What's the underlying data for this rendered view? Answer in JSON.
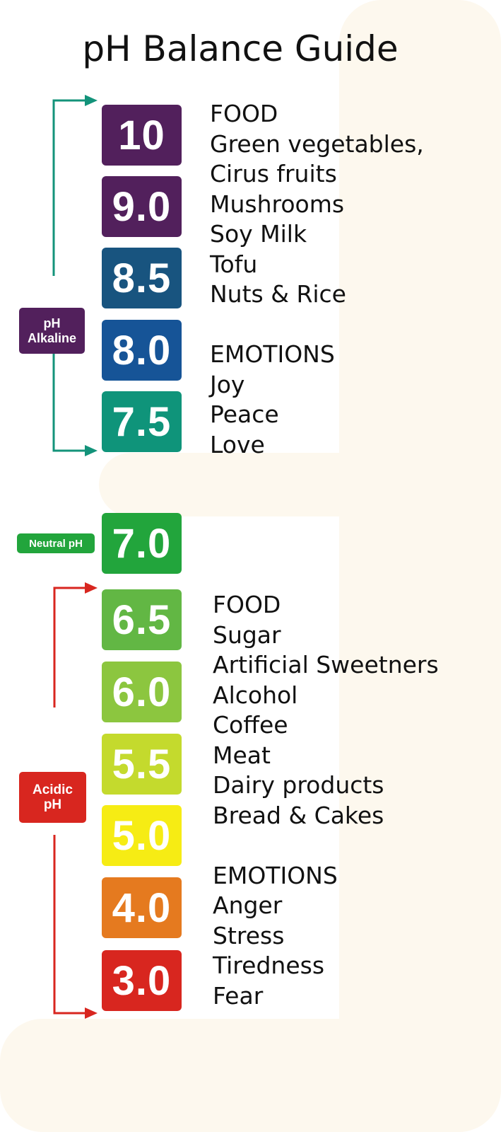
{
  "title": "pH Balance Guide",
  "scale": [
    {
      "value": "10",
      "color": "#52205c"
    },
    {
      "value": "9.0",
      "color": "#52205c"
    },
    {
      "value": "8.5",
      "color": "#18547f"
    },
    {
      "value": "8.0",
      "color": "#165497"
    },
    {
      "value": "7.5",
      "color": "#0f947a"
    },
    {
      "value": "7.0",
      "color": "#22a53c"
    },
    {
      "value": "6.5",
      "color": "#62b744"
    },
    {
      "value": "6.0",
      "color": "#8cc63f"
    },
    {
      "value": "5.5",
      "color": "#c4da2d"
    },
    {
      "value": "5.0",
      "color": "#f6ec14"
    },
    {
      "value": "4.0",
      "color": "#e57a1f"
    },
    {
      "value": "3.0",
      "color": "#d8261f"
    }
  ],
  "labels": {
    "alkaline": {
      "line1": "pH",
      "line2": "Alkaline",
      "color": "#52205c",
      "arrow_color": "#13937a"
    },
    "neutral": {
      "text": "Neutral pH",
      "color": "#22a53c"
    },
    "acidic": {
      "line1": "Acidic",
      "line2": "pH",
      "color": "#d8261f",
      "arrow_color": "#d8261f"
    }
  },
  "alkaline_list": {
    "food_heading": "FOOD",
    "food": [
      "Green vegetables,",
      "Cirus fruits",
      "Mushrooms",
      "Soy Milk",
      "Tofu",
      "Nuts & Rice"
    ],
    "emotions_heading": "EMOTIONS",
    "emotions": [
      "Joy",
      "Peace",
      "Love"
    ]
  },
  "acidic_list": {
    "food_heading": "FOOD",
    "food": [
      "Sugar",
      "Artificial Sweetners",
      "Alcohol",
      "Coffee",
      "Meat",
      "Dairy products",
      "Bread & Cakes"
    ],
    "emotions_heading": "EMOTIONS",
    "emotions": [
      "Anger",
      "Stress",
      "Tiredness",
      "Fear"
    ]
  }
}
